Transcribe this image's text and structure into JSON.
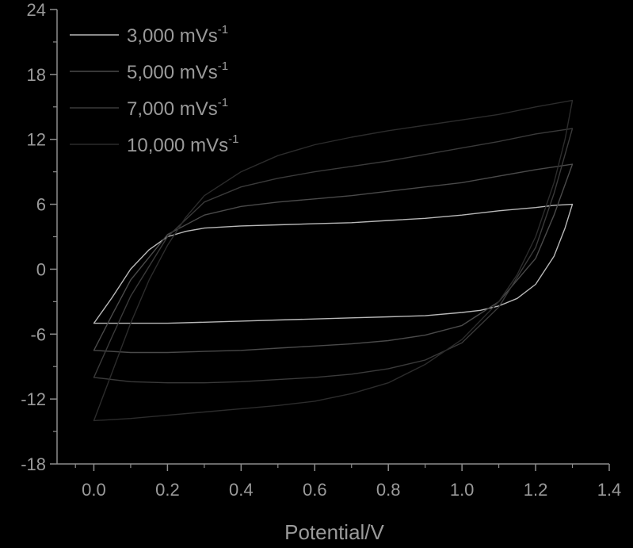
{
  "chart_data": {
    "type": "line",
    "title": "",
    "xlabel": "Potential/V",
    "ylabel": "",
    "xlim": [
      -0.1,
      1.4
    ],
    "ylim": [
      -18,
      24
    ],
    "x_ticks": [
      0.0,
      0.2,
      0.4,
      0.6,
      0.8,
      1.0,
      1.2,
      1.4
    ],
    "x_tick_labels": [
      "0.0",
      "0.2",
      "0.4",
      "0.6",
      "0.8",
      "1.0",
      "1.2",
      "1.4"
    ],
    "y_ticks": [
      -18,
      -12,
      -6,
      0,
      6,
      12,
      18,
      24
    ],
    "y_tick_labels": [
      "-18",
      "-12",
      "-6",
      "0",
      "6",
      "12",
      "18",
      "24"
    ],
    "grid": false,
    "legend_position": "top-left",
    "background_color": "#000000",
    "axis_color": "#8c8c8c",
    "text_color": "#9a9a9a",
    "series": [
      {
        "legend_base": "3,000 mVs",
        "legend_sup": "-1",
        "color": "#b8b8b8",
        "x": [
          0.0,
          0.05,
          0.1,
          0.15,
          0.2,
          0.25,
          0.3,
          0.4,
          0.5,
          0.6,
          0.7,
          0.8,
          0.9,
          1.0,
          1.1,
          1.2,
          1.25,
          1.3,
          1.3,
          1.28,
          1.25,
          1.2,
          1.15,
          1.1,
          1.05,
          1.0,
          0.9,
          0.8,
          0.7,
          0.6,
          0.5,
          0.4,
          0.3,
          0.2,
          0.1,
          0.05,
          0.0
        ],
        "y": [
          -5.0,
          -2.6,
          0.0,
          1.8,
          3.0,
          3.5,
          3.8,
          4.0,
          4.1,
          4.2,
          4.3,
          4.5,
          4.7,
          5.0,
          5.4,
          5.7,
          5.9,
          6.0,
          6.0,
          3.8,
          1.2,
          -1.4,
          -2.7,
          -3.4,
          -3.8,
          -4.0,
          -4.3,
          -4.4,
          -4.5,
          -4.6,
          -4.7,
          -4.8,
          -4.9,
          -5.0,
          -5.0,
          -5.0,
          -5.0
        ]
      },
      {
        "legend_base": "5,000 mVs",
        "legend_sup": "-1",
        "color": "#4a4a4a",
        "x": [
          0.0,
          0.05,
          0.1,
          0.2,
          0.3,
          0.4,
          0.5,
          0.6,
          0.7,
          0.8,
          0.9,
          1.0,
          1.1,
          1.2,
          1.3,
          1.3,
          1.25,
          1.2,
          1.1,
          1.0,
          0.9,
          0.8,
          0.7,
          0.6,
          0.5,
          0.4,
          0.3,
          0.2,
          0.1,
          0.0
        ],
        "y": [
          -7.5,
          -4.2,
          -1.0,
          3.2,
          5.0,
          5.8,
          6.2,
          6.5,
          6.8,
          7.2,
          7.6,
          8.0,
          8.6,
          9.2,
          9.7,
          9.7,
          5.0,
          1.0,
          -3.0,
          -5.2,
          -6.1,
          -6.6,
          -6.9,
          -7.1,
          -7.3,
          -7.5,
          -7.6,
          -7.7,
          -7.7,
          -7.5
        ]
      },
      {
        "legend_base": "7,000 mVs",
        "legend_sup": "-1",
        "color": "#3a3a3a",
        "x": [
          0.0,
          0.05,
          0.1,
          0.2,
          0.3,
          0.4,
          0.5,
          0.6,
          0.7,
          0.8,
          0.9,
          1.0,
          1.1,
          1.2,
          1.3,
          1.3,
          1.25,
          1.2,
          1.1,
          1.0,
          0.9,
          0.8,
          0.7,
          0.6,
          0.5,
          0.4,
          0.3,
          0.2,
          0.1,
          0.0
        ],
        "y": [
          -10.0,
          -6.2,
          -2.5,
          3.0,
          6.2,
          7.6,
          8.4,
          9.0,
          9.5,
          10.0,
          10.6,
          11.2,
          11.8,
          12.5,
          13.0,
          13.0,
          7.0,
          2.0,
          -3.5,
          -6.8,
          -8.4,
          -9.2,
          -9.7,
          -10.0,
          -10.2,
          -10.4,
          -10.5,
          -10.5,
          -10.4,
          -10.0
        ]
      },
      {
        "legend_base": "10,000 mVs",
        "legend_sup": "-1",
        "color": "#2c2c2c",
        "x": [
          0.0,
          0.05,
          0.1,
          0.15,
          0.2,
          0.25,
          0.3,
          0.4,
          0.5,
          0.6,
          0.7,
          0.8,
          0.9,
          1.0,
          1.1,
          1.2,
          1.3,
          1.3,
          1.28,
          1.25,
          1.2,
          1.15,
          1.1,
          1.0,
          0.9,
          0.8,
          0.7,
          0.6,
          0.5,
          0.4,
          0.3,
          0.2,
          0.1,
          0.0
        ],
        "y": [
          -14.0,
          -9.5,
          -5.0,
          -1.0,
          2.2,
          4.8,
          6.8,
          9.0,
          10.5,
          11.5,
          12.2,
          12.8,
          13.3,
          13.8,
          14.3,
          15.0,
          15.6,
          15.6,
          12.0,
          8.0,
          3.0,
          -0.5,
          -3.0,
          -6.5,
          -8.8,
          -10.5,
          -11.5,
          -12.2,
          -12.6,
          -12.9,
          -13.2,
          -13.5,
          -13.8,
          -14.0
        ]
      }
    ]
  }
}
